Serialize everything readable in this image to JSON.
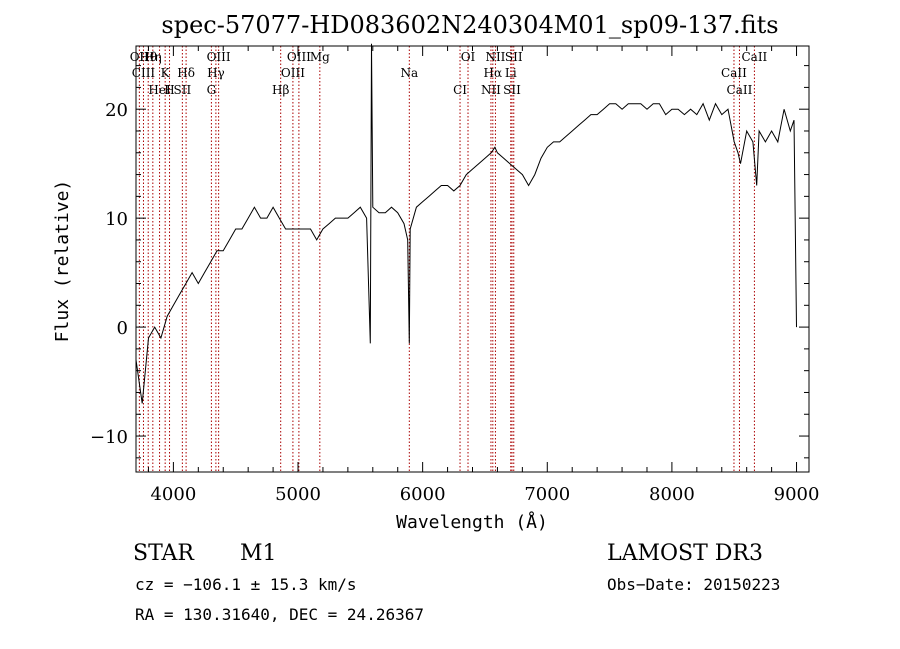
{
  "chart_data": {
    "type": "line",
    "title": "spec-57077-HD083602N240304M01_sp09-137.fits",
    "xlabel": "Wavelength (Å)",
    "ylabel": "Flux (relative)",
    "xlim": [
      3700,
      9100
    ],
    "ylim": [
      -13.3,
      25.8
    ],
    "xticks": [
      4000,
      5000,
      6000,
      7000,
      8000,
      9000
    ],
    "yticks": [
      -10,
      0,
      10,
      20
    ],
    "series": [
      {
        "name": "spectrum",
        "x": [
          3700,
          3750,
          3800,
          3850,
          3900,
          3950,
          4000,
          4050,
          4100,
          4150,
          4200,
          4250,
          4300,
          4350,
          4400,
          4450,
          4500,
          4550,
          4600,
          4650,
          4700,
          4750,
          4800,
          4850,
          4900,
          4950,
          5000,
          5050,
          5100,
          5150,
          5200,
          5250,
          5300,
          5350,
          5400,
          5450,
          5500,
          5550,
          5580,
          5590,
          5600,
          5650,
          5700,
          5750,
          5800,
          5850,
          5880,
          5893,
          5900,
          5950,
          6000,
          6050,
          6100,
          6150,
          6200,
          6250,
          6300,
          6350,
          6400,
          6450,
          6500,
          6550,
          6580,
          6600,
          6650,
          6700,
          6750,
          6800,
          6850,
          6900,
          6950,
          7000,
          7050,
          7100,
          7150,
          7200,
          7250,
          7300,
          7350,
          7400,
          7450,
          7500,
          7550,
          7600,
          7650,
          7700,
          7750,
          7800,
          7850,
          7900,
          7950,
          8000,
          8050,
          8100,
          8150,
          8200,
          8250,
          8300,
          8350,
          8400,
          8450,
          8500,
          8530,
          8550,
          8600,
          8650,
          8680,
          8700,
          8750,
          8800,
          8850,
          8900,
          8950,
          8980,
          9000
        ],
        "y": [
          -3,
          -7,
          -1,
          0,
          -1,
          1,
          2,
          3,
          4,
          5,
          4,
          5,
          6,
          7,
          7,
          8,
          9,
          9,
          10,
          11,
          10,
          10,
          11,
          10,
          9,
          9,
          9,
          9,
          9,
          8,
          9,
          9.5,
          10,
          10,
          10,
          10.5,
          11,
          10,
          -1.5,
          26,
          11,
          10.5,
          10.5,
          11,
          10.5,
          9.5,
          8,
          -1.5,
          9,
          11,
          11.5,
          12,
          12.5,
          13,
          13,
          12.5,
          13,
          14,
          14.5,
          15,
          15.5,
          16,
          16.5,
          16,
          15.5,
          15,
          14.5,
          14,
          13,
          14,
          15.5,
          16.5,
          17,
          17,
          17.5,
          18,
          18.5,
          19,
          19.5,
          19.5,
          20,
          20.5,
          20.5,
          20,
          20.5,
          20.5,
          20.5,
          20,
          20.5,
          20.5,
          19.5,
          20,
          20,
          19.5,
          20,
          19.5,
          20.5,
          19,
          20.5,
          19.5,
          20,
          17,
          16,
          15,
          18,
          17,
          13,
          18,
          17,
          18,
          17,
          20,
          18,
          19,
          0
        ]
      }
    ],
    "lines": [
      {
        "name": "Hθ",
        "wl": 3798
      },
      {
        "name": "K",
        "wl": 3934
      },
      {
        "name": "H",
        "wl": 3969
      },
      {
        "name": "OII",
        "wl": 3727
      },
      {
        "name": "CIII",
        "wl": 3760
      },
      {
        "name": "HeI",
        "wl": 3889
      },
      {
        "name": "Hη",
        "wl": 3835
      },
      {
        "name": "Hδ",
        "wl": 4102
      },
      {
        "name": "SII",
        "wl": 4072
      },
      {
        "name": "OIII",
        "wl": 4363
      },
      {
        "name": "Hγ",
        "wl": 4341
      },
      {
        "name": "G",
        "wl": 4305
      },
      {
        "name": "OIII",
        "wl": 5007
      },
      {
        "name": "OIII",
        "wl": 4959
      },
      {
        "name": "Hβ",
        "wl": 4861
      },
      {
        "name": "Mg",
        "wl": 5175
      },
      {
        "name": "Na",
        "wl": 5893
      },
      {
        "name": "CI",
        "wl": 6300
      },
      {
        "name": "OI",
        "wl": 6364
      },
      {
        "name": "Hα",
        "wl": 6563
      },
      {
        "name": "SII",
        "wl": 6717
      },
      {
        "name": "NII",
        "wl": 6584
      },
      {
        "name": "Li",
        "wl": 6707
      },
      {
        "name": "NII",
        "wl": 6548
      },
      {
        "name": "SII",
        "wl": 6731
      },
      {
        "name": "CaII",
        "wl": 8498
      },
      {
        "name": "CaII",
        "wl": 8542
      },
      {
        "name": "CaII",
        "wl": 8662
      }
    ]
  },
  "info": {
    "object_class": "STAR",
    "subclass": "M1",
    "survey": "LAMOST DR3",
    "cz": "cz = −106.1 ± 15.3 km/s",
    "obs_date": "Obs−Date: 20150223",
    "coords": "RA = 130.31640, DEC =  24.26367"
  },
  "colors": {
    "line_marker": "#aa0000",
    "spectrum": "#000000"
  }
}
